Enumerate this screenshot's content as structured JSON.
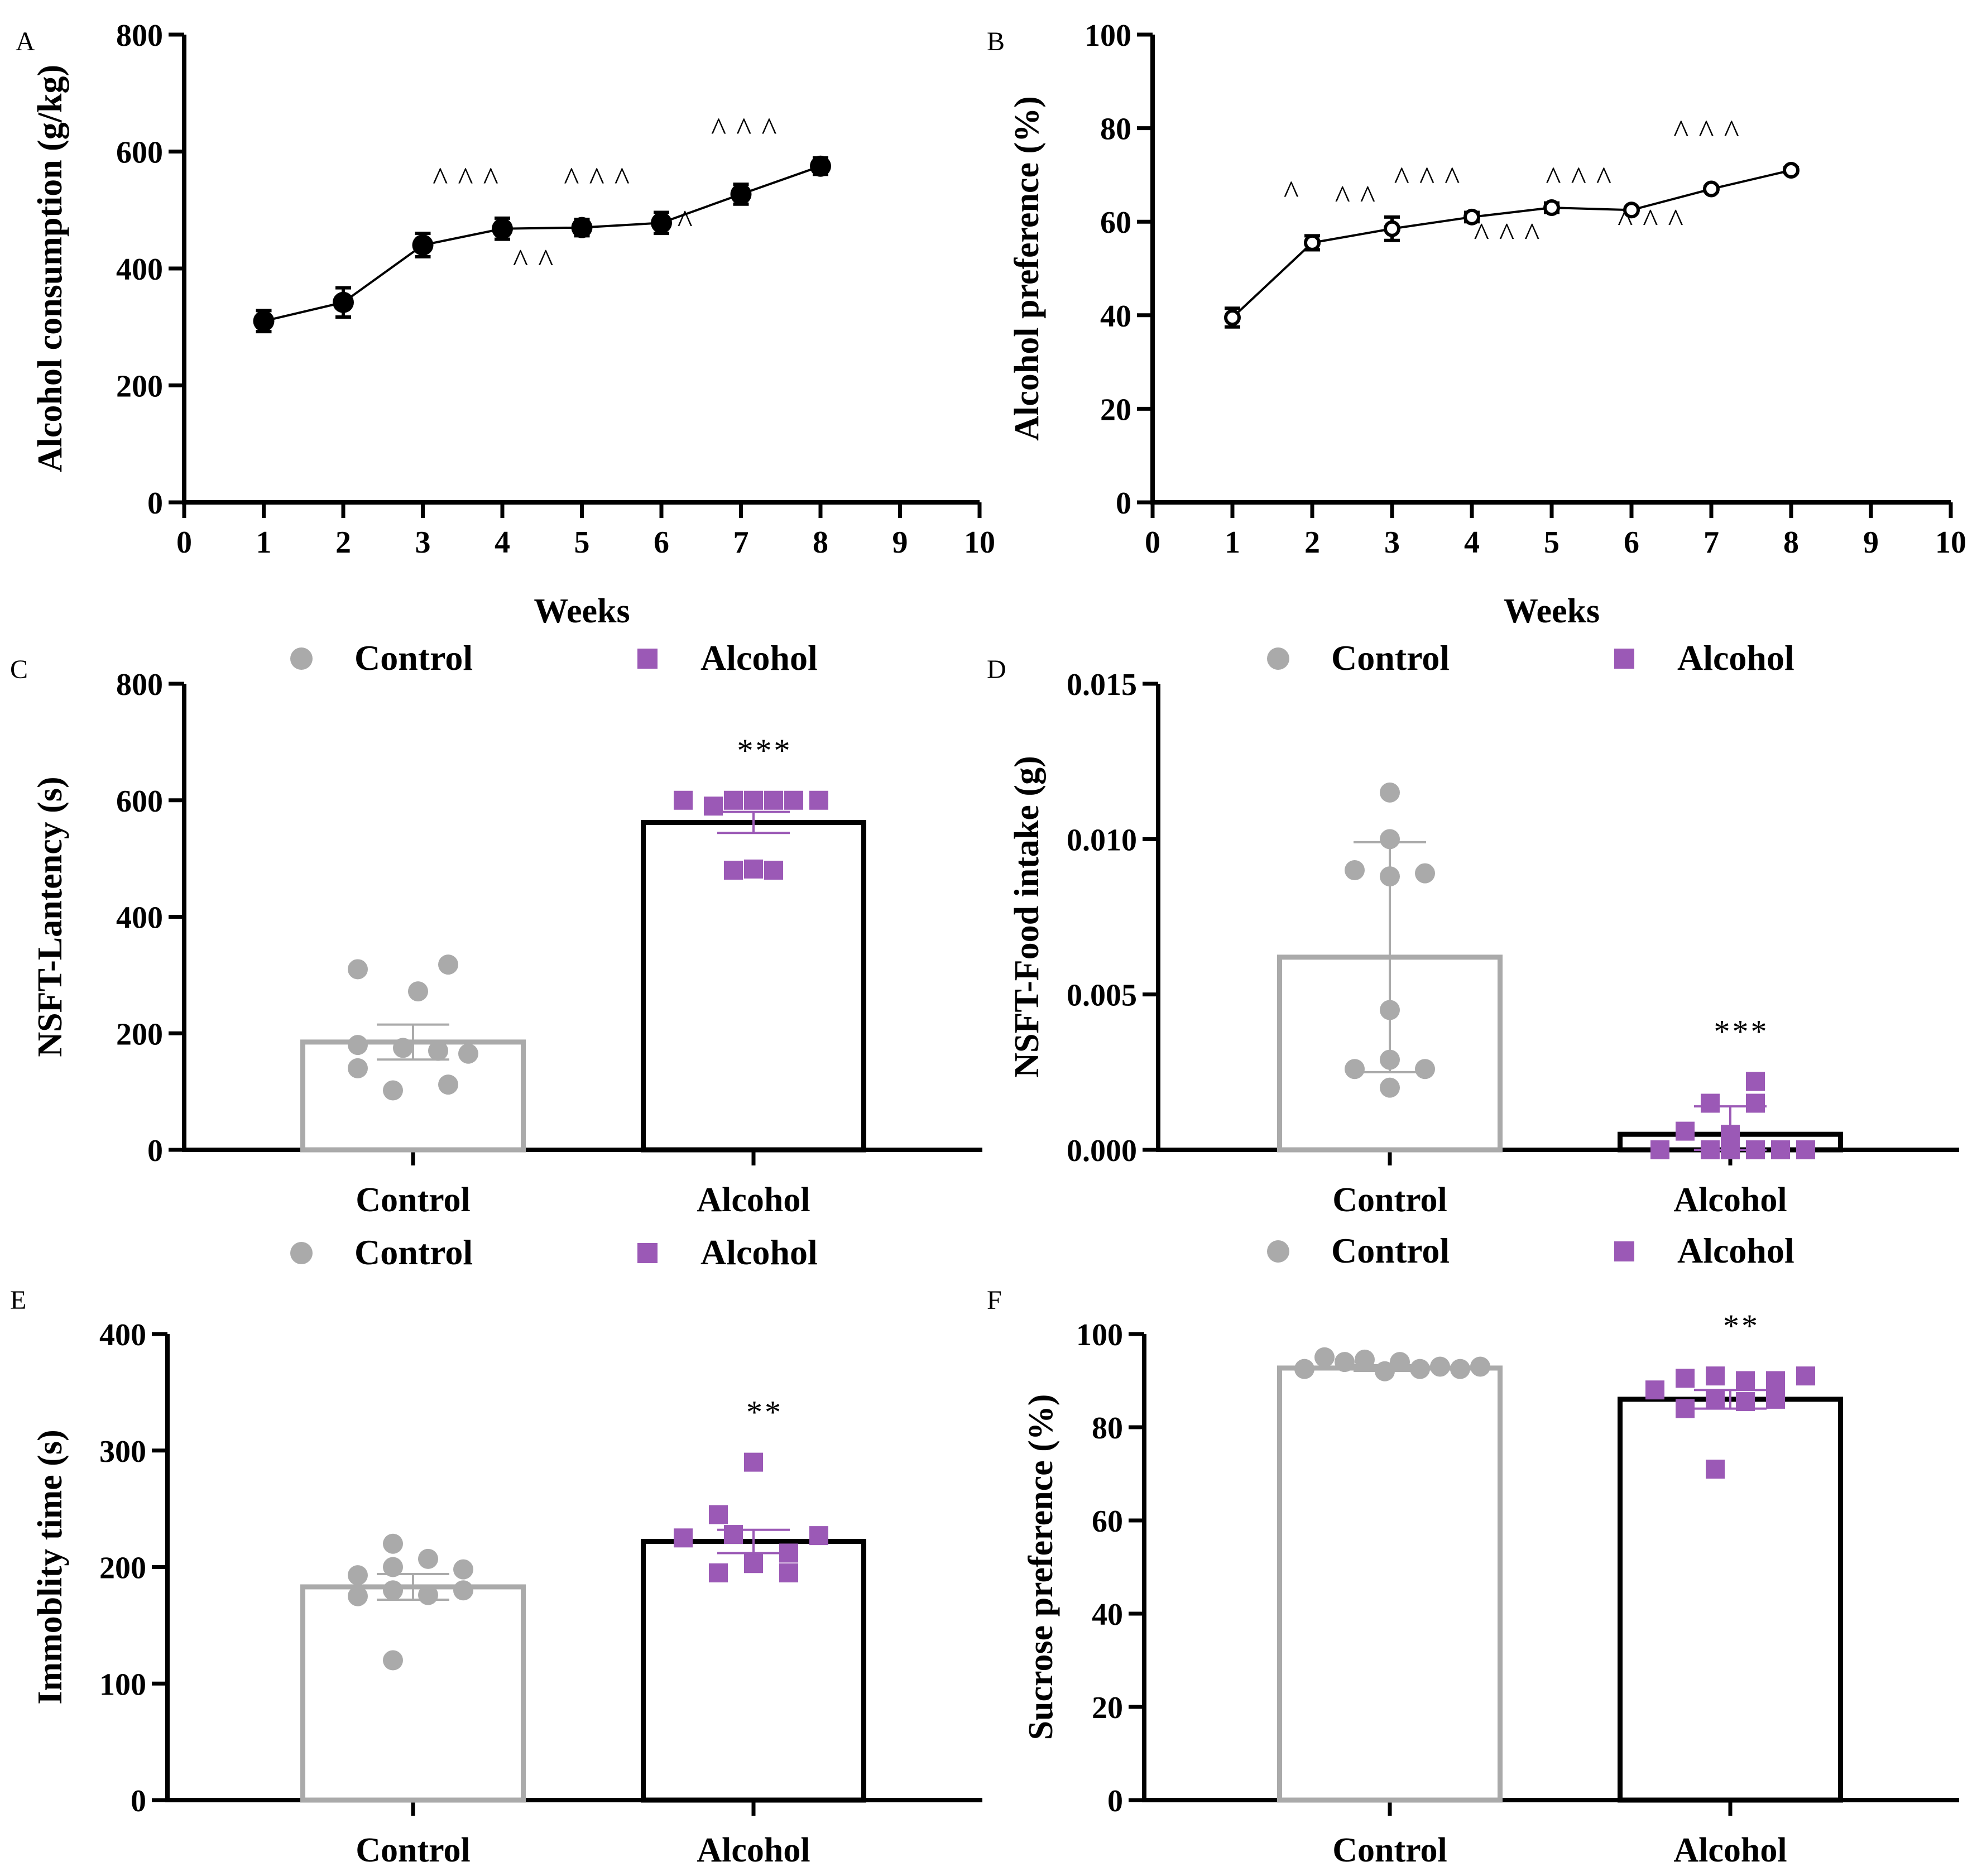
{
  "chart_data": [
    {
      "id": "A",
      "type": "line",
      "panel_label": "A",
      "xlabel": "Weeks",
      "ylabel": "Alcohol consumption (g/kg)",
      "xlim": [
        0,
        10
      ],
      "ylim": [
        0,
        800
      ],
      "xticks": [
        "0",
        "1",
        "2",
        "3",
        "4",
        "5",
        "6",
        "7",
        "8",
        "9",
        "10"
      ],
      "yticks": [
        "0",
        "200",
        "400",
        "600",
        "800"
      ],
      "series": [
        {
          "name": "Alcohol consumption",
          "marker": "filled-circle",
          "x": [
            1,
            2,
            3,
            4,
            5,
            6,
            7,
            8
          ],
          "y": [
            310,
            342,
            440,
            468,
            470,
            478,
            527,
            575
          ],
          "err": [
            18,
            25,
            20,
            18,
            14,
            18,
            17,
            14
          ]
        }
      ],
      "annotations": [
        {
          "text": "^^^",
          "x": 3.6,
          "y": 535
        },
        {
          "text": "^^",
          "x": 4.45,
          "y": 395
        },
        {
          "text": "^^^",
          "x": 5.25,
          "y": 535
        },
        {
          "text": "^^",
          "x": 6.2,
          "y": 462
        },
        {
          "text": "^^^",
          "x": 7.1,
          "y": 620
        }
      ]
    },
    {
      "id": "B",
      "type": "line",
      "panel_label": "B",
      "xlabel": "Weeks",
      "ylabel": "Alcohol preference (%)",
      "xlim": [
        0,
        10
      ],
      "ylim": [
        0,
        100
      ],
      "xticks": [
        "0",
        "1",
        "2",
        "3",
        "4",
        "5",
        "6",
        "7",
        "8",
        "9",
        "10"
      ],
      "yticks": [
        "0",
        "20",
        "40",
        "60",
        "80",
        "100"
      ],
      "series": [
        {
          "name": "Alcohol preference",
          "marker": "open-circle",
          "x": [
            1,
            2,
            3,
            4,
            5,
            6,
            7,
            8
          ],
          "y": [
            39.5,
            55.5,
            58.5,
            61,
            63,
            62.5,
            67,
            71
          ],
          "err": [
            2,
            1.5,
            2.5,
            1,
            1,
            0.5,
            0.5,
            0.5
          ]
        }
      ],
      "annotations": [
        {
          "text": "^",
          "x": 1.8,
          "y": 64
        },
        {
          "text": "^^",
          "x": 2.6,
          "y": 63
        },
        {
          "text": "^^^",
          "x": 3.5,
          "y": 67
        },
        {
          "text": "^^^",
          "x": 4.5,
          "y": 55
        },
        {
          "text": "^^^",
          "x": 5.4,
          "y": 67
        },
        {
          "text": "^^^",
          "x": 6.3,
          "y": 58
        },
        {
          "text": "^^^",
          "x": 7,
          "y": 77
        }
      ]
    },
    {
      "id": "C",
      "type": "bar",
      "panel_label": "C",
      "xlabel": "",
      "ylabel": "NSFT-Lantency (s)",
      "ylim": [
        0,
        800
      ],
      "yticks": [
        "0",
        "200",
        "400",
        "600",
        "800"
      ],
      "categories": [
        "Control",
        "Alcohol"
      ],
      "legend": [
        "Control",
        "Alcohol"
      ],
      "series": [
        {
          "name": "Control",
          "mean": 185,
          "err": 30,
          "points": [
            {
              "x": -0.55,
              "y": 310
            },
            {
              "x": 0.05,
              "y": 272
            },
            {
              "x": 0.35,
              "y": 318
            },
            {
              "x": -0.55,
              "y": 180
            },
            {
              "x": -0.1,
              "y": 175
            },
            {
              "x": 0.25,
              "y": 170
            },
            {
              "x": 0.55,
              "y": 165
            },
            {
              "x": -0.55,
              "y": 140
            },
            {
              "x": -0.2,
              "y": 102
            },
            {
              "x": 0.35,
              "y": 112
            }
          ]
        },
        {
          "name": "Alcohol",
          "mean": 562,
          "err": 18,
          "points": [
            {
              "x": -0.7,
              "y": 600
            },
            {
              "x": -0.4,
              "y": 590
            },
            {
              "x": -0.2,
              "y": 600
            },
            {
              "x": 0.0,
              "y": 600
            },
            {
              "x": 0.2,
              "y": 600
            },
            {
              "x": 0.4,
              "y": 600
            },
            {
              "x": 0.65,
              "y": 600
            },
            {
              "x": -0.2,
              "y": 480
            },
            {
              "x": 0.0,
              "y": 482
            },
            {
              "x": 0.2,
              "y": 480
            }
          ]
        }
      ],
      "significance": "***"
    },
    {
      "id": "D",
      "type": "bar",
      "panel_label": "D",
      "xlabel": "",
      "ylabel": "NSFT-Food intake (g)",
      "ylim": [
        0,
        0.015
      ],
      "yticks": [
        "0.000",
        "0.005",
        "0.010",
        "0.015"
      ],
      "categories": [
        "Control",
        "Alcohol"
      ],
      "legend": [
        "Control",
        "Alcohol"
      ],
      "series": [
        {
          "name": "Control",
          "mean": 0.0062,
          "err": 0.0037,
          "points": [
            {
              "x": 0.0,
              "y": 0.0115
            },
            {
              "x": 0.0,
              "y": 0.01
            },
            {
              "x": -0.35,
              "y": 0.009
            },
            {
              "x": 0.0,
              "y": 0.0088
            },
            {
              "x": 0.35,
              "y": 0.0089
            },
            {
              "x": 0.0,
              "y": 0.0045
            },
            {
              "x": -0.35,
              "y": 0.0026
            },
            {
              "x": 0.0,
              "y": 0.0029
            },
            {
              "x": 0.35,
              "y": 0.0026
            },
            {
              "x": 0.0,
              "y": 0.002
            }
          ]
        },
        {
          "name": "Alcohol",
          "mean": 0.0005,
          "err": 0.0009,
          "points": [
            {
              "x": -0.7,
              "y": 0.0
            },
            {
              "x": -0.45,
              "y": 0.0006
            },
            {
              "x": -0.2,
              "y": 0.0
            },
            {
              "x": -0.2,
              "y": 0.0015
            },
            {
              "x": 0.0,
              "y": 0.0
            },
            {
              "x": 0.0,
              "y": 0.0005
            },
            {
              "x": 0.25,
              "y": 0.0
            },
            {
              "x": 0.25,
              "y": 0.0015
            },
            {
              "x": 0.25,
              "y": 0.0022
            },
            {
              "x": 0.5,
              "y": 0.0
            },
            {
              "x": 0.75,
              "y": 0.0
            }
          ]
        }
      ],
      "significance": "***"
    },
    {
      "id": "E",
      "type": "bar",
      "panel_label": "E",
      "xlabel": "",
      "ylabel": "Immoblity time (s)",
      "ylim": [
        0,
        400
      ],
      "yticks": [
        "0",
        "100",
        "200",
        "300",
        "400"
      ],
      "categories": [
        "Control",
        "Alcohol"
      ],
      "legend": [
        "Control",
        "Alcohol"
      ],
      "series": [
        {
          "name": "Control",
          "mean": 183,
          "err": 11,
          "points": [
            {
              "x": -0.55,
              "y": 193
            },
            {
              "x": -0.2,
              "y": 200
            },
            {
              "x": -0.2,
              "y": 220
            },
            {
              "x": 0.15,
              "y": 207
            },
            {
              "x": 0.5,
              "y": 198
            },
            {
              "x": -0.55,
              "y": 175
            },
            {
              "x": -0.2,
              "y": 180
            },
            {
              "x": 0.15,
              "y": 176
            },
            {
              "x": 0.5,
              "y": 180
            },
            {
              "x": -0.2,
              "y": 120
            }
          ]
        },
        {
          "name": "Alcohol",
          "mean": 222,
          "err": 10,
          "points": [
            {
              "x": -0.7,
              "y": 225
            },
            {
              "x": -0.35,
              "y": 245
            },
            {
              "x": -0.35,
              "y": 195
            },
            {
              "x": -0.2,
              "y": 228
            },
            {
              "x": 0.0,
              "y": 290
            },
            {
              "x": 0.0,
              "y": 203
            },
            {
              "x": 0.35,
              "y": 212
            },
            {
              "x": 0.35,
              "y": 195
            },
            {
              "x": 0.65,
              "y": 227
            }
          ]
        }
      ],
      "significance": "**"
    },
    {
      "id": "F",
      "type": "bar",
      "panel_label": "F",
      "xlabel": "",
      "ylabel": "Sucrose preference (%)",
      "ylim": [
        0,
        100
      ],
      "yticks": [
        "0",
        "20",
        "40",
        "60",
        "80",
        "100"
      ],
      "categories": [
        "Control",
        "Alcohol"
      ],
      "legend": [
        "Control",
        "Alcohol"
      ],
      "series": [
        {
          "name": "Control",
          "mean": 92.7,
          "err": 0.6,
          "points": [
            {
              "x": -0.85,
              "y": 92.5
            },
            {
              "x": -0.65,
              "y": 95
            },
            {
              "x": -0.45,
              "y": 94
            },
            {
              "x": -0.25,
              "y": 94.5
            },
            {
              "x": -0.05,
              "y": 92
            },
            {
              "x": 0.1,
              "y": 94
            },
            {
              "x": 0.3,
              "y": 92.5
            },
            {
              "x": 0.5,
              "y": 93
            },
            {
              "x": 0.7,
              "y": 92.5
            },
            {
              "x": 0.9,
              "y": 93
            }
          ]
        },
        {
          "name": "Alcohol",
          "mean": 86,
          "err": 2,
          "points": [
            {
              "x": -0.75,
              "y": 88
            },
            {
              "x": -0.45,
              "y": 90.5
            },
            {
              "x": -0.45,
              "y": 84
            },
            {
              "x": -0.15,
              "y": 91
            },
            {
              "x": -0.15,
              "y": 86
            },
            {
              "x": 0.15,
              "y": 90
            },
            {
              "x": 0.15,
              "y": 85.5
            },
            {
              "x": 0.45,
              "y": 90
            },
            {
              "x": 0.45,
              "y": 86
            },
            {
              "x": 0.75,
              "y": 91
            },
            {
              "x": -0.15,
              "y": 71
            }
          ]
        }
      ],
      "significance": "**"
    }
  ]
}
